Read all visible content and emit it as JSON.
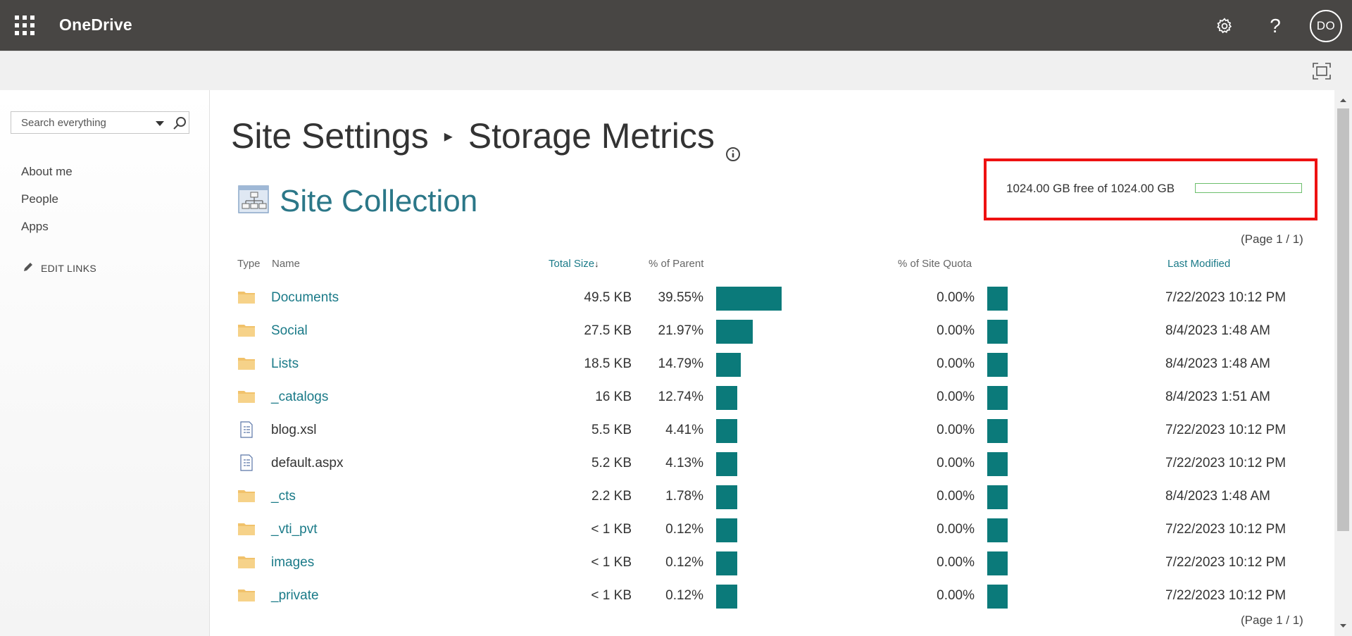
{
  "suitebar": {
    "app_title": "OneDrive",
    "help_glyph": "?",
    "avatar_initials": "DO",
    "icons": [
      "app-launcher-icon",
      "gear-icon",
      "help-icon"
    ]
  },
  "leftnav": {
    "search_placeholder": "Search everything",
    "links": [
      "About me",
      "People",
      "Apps"
    ],
    "edit_links": "EDIT LINKS"
  },
  "header": {
    "breadcrumb_parent": "Site Settings",
    "breadcrumb_separator": "▸",
    "page_title": "Storage Metrics",
    "section_title": "Site Collection"
  },
  "quota": {
    "text": "1024.00 GB free of 1024.00 GB",
    "used_fraction": 0.0,
    "bar_color": "#6cbf6c"
  },
  "pager": {
    "top": "(Page 1 / 1)",
    "bottom": "(Page 1 / 1)"
  },
  "table": {
    "headers": {
      "type": "Type",
      "name": "Name",
      "total_size": "Total Size",
      "sort_indicator": "↓",
      "percent_parent": "% of Parent",
      "percent_quota": "% of Site Quota",
      "last_modified": "Last Modified"
    },
    "rows": [
      {
        "kind": "folder",
        "name": "Documents",
        "size": "49.5 KB",
        "pct_parent": "39.55%",
        "pct_parent_value": 39.55,
        "pct_quota": "0.00%",
        "modified": "7/22/2023 10:12 PM"
      },
      {
        "kind": "folder",
        "name": "Social",
        "size": "27.5 KB",
        "pct_parent": "21.97%",
        "pct_parent_value": 21.97,
        "pct_quota": "0.00%",
        "modified": "8/4/2023 1:48 AM"
      },
      {
        "kind": "folder",
        "name": "Lists",
        "size": "18.5 KB",
        "pct_parent": "14.79%",
        "pct_parent_value": 14.79,
        "pct_quota": "0.00%",
        "modified": "8/4/2023 1:48 AM"
      },
      {
        "kind": "folder",
        "name": "_catalogs",
        "size": "16 KB",
        "pct_parent": "12.74%",
        "pct_parent_value": 12.74,
        "pct_quota": "0.00%",
        "modified": "8/4/2023 1:51 AM"
      },
      {
        "kind": "file",
        "name": "blog.xsl",
        "size": "5.5 KB",
        "pct_parent": "4.41%",
        "pct_parent_value": 4.41,
        "pct_quota": "0.00%",
        "modified": "7/22/2023 10:12 PM"
      },
      {
        "kind": "file",
        "name": "default.aspx",
        "size": "5.2 KB",
        "pct_parent": "4.13%",
        "pct_parent_value": 4.13,
        "pct_quota": "0.00%",
        "modified": "7/22/2023 10:12 PM"
      },
      {
        "kind": "folder",
        "name": "_cts",
        "size": "2.2 KB",
        "pct_parent": "1.78%",
        "pct_parent_value": 1.78,
        "pct_quota": "0.00%",
        "modified": "8/4/2023 1:48 AM"
      },
      {
        "kind": "folder",
        "name": "_vti_pvt",
        "size": "< 1 KB",
        "pct_parent": "0.12%",
        "pct_parent_value": 0.12,
        "pct_quota": "0.00%",
        "modified": "7/22/2023 10:12 PM"
      },
      {
        "kind": "folder",
        "name": "images",
        "size": "< 1 KB",
        "pct_parent": "0.12%",
        "pct_parent_value": 0.12,
        "pct_quota": "0.00%",
        "modified": "7/22/2023 10:12 PM"
      },
      {
        "kind": "folder",
        "name": "_private",
        "size": "< 1 KB",
        "pct_parent": "0.12%",
        "pct_parent_value": 0.12,
        "pct_quota": "0.00%",
        "modified": "7/22/2023 10:12 PM"
      }
    ]
  },
  "colors": {
    "suitebar": "#484644",
    "accent_teal": "#0b7a7a",
    "link_teal": "#1a7a88",
    "highlight_red": "#ee1111",
    "folder_yellow": "#f1c26b"
  }
}
